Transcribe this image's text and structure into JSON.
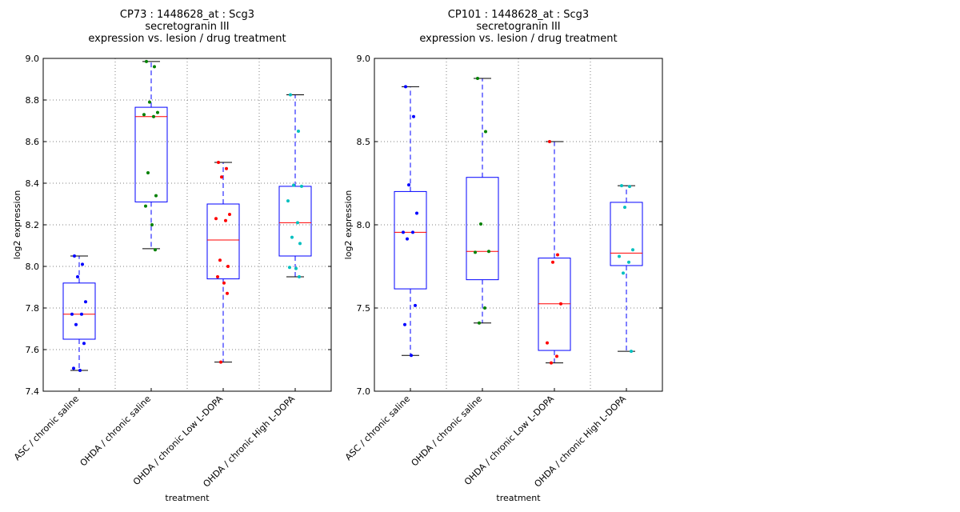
{
  "chart_data": [
    {
      "type": "box",
      "title_lines": [
        "CP73 : 1448628_at : Scg3",
        "secretogranin III",
        "expression vs. lesion / drug treatment"
      ],
      "xlabel": "treatment",
      "ylabel": "log2 expression",
      "ylim": [
        7.4,
        9.0
      ],
      "yticks": [
        "7.4",
        "7.6",
        "7.8",
        "8.0",
        "8.2",
        "8.4",
        "8.6",
        "8.8",
        "9.0"
      ],
      "ytick_values": [
        7.4,
        7.6,
        7.8,
        8.0,
        8.2,
        8.4,
        8.6,
        8.8,
        9.0
      ],
      "grid": true,
      "categories": [
        "ASC / chronic saline",
        "OHDA / chronic saline",
        "OHDA / chronic Low L-DOPA",
        "OHDA / chronic High L-DOPA"
      ],
      "groups": [
        {
          "color": "#0000ff",
          "q1": 7.65,
          "median": 7.77,
          "q3": 7.92,
          "whisker_low": 7.5,
          "whisker_high": 8.05,
          "points": [
            8.05,
            8.01,
            7.95,
            7.83,
            7.77,
            7.77,
            7.72,
            7.63,
            7.51,
            7.5
          ]
        },
        {
          "color": "#008000",
          "q1": 8.31,
          "median": 8.72,
          "q3": 8.765,
          "whisker_low": 8.085,
          "whisker_high": 8.985,
          "points": [
            8.985,
            8.96,
            8.79,
            8.74,
            8.73,
            8.72,
            8.45,
            8.34,
            8.29,
            8.2,
            8.08
          ]
        },
        {
          "color": "#ff0000",
          "q1": 7.94,
          "median": 8.127,
          "q3": 8.3,
          "whisker_low": 7.54,
          "whisker_high": 8.5,
          "points": [
            8.5,
            8.47,
            8.43,
            8.25,
            8.23,
            8.22,
            8.03,
            8.0,
            7.95,
            7.92,
            7.87,
            7.54
          ]
        },
        {
          "color": "#00bfbf",
          "q1": 8.05,
          "median": 8.21,
          "q3": 8.385,
          "whisker_low": 7.95,
          "whisker_high": 8.825,
          "points": [
            8.825,
            8.65,
            8.39,
            8.385,
            8.315,
            8.21,
            8.14,
            8.11,
            7.995,
            7.99,
            7.95
          ]
        }
      ]
    },
    {
      "type": "box",
      "title_lines": [
        "CP101 : 1448628_at : Scg3",
        "secretogranin III",
        "expression vs. lesion / drug treatment"
      ],
      "xlabel": "treatment",
      "ylabel": "log2 expression",
      "ylim": [
        7.0,
        9.0
      ],
      "yticks": [
        "7.0",
        "7.5",
        "8.0",
        "8.5",
        "9.0"
      ],
      "ytick_values": [
        7.0,
        7.5,
        8.0,
        8.5,
        9.0
      ],
      "grid": true,
      "categories": [
        "ASC / chronic saline",
        "OHDA / chronic saline",
        "OHDA / chronic Low L-DOPA",
        "OHDA / chronic High L-DOPA"
      ],
      "groups": [
        {
          "color": "#0000ff",
          "q1": 7.615,
          "median": 7.955,
          "q3": 8.2,
          "whisker_low": 7.215,
          "whisker_high": 8.83,
          "points": [
            8.83,
            8.65,
            8.24,
            8.07,
            7.955,
            7.955,
            7.915,
            7.515,
            7.4,
            7.215
          ]
        },
        {
          "color": "#008000",
          "q1": 7.67,
          "median": 7.84,
          "q3": 8.285,
          "whisker_low": 7.41,
          "whisker_high": 8.88,
          "points": [
            8.88,
            8.56,
            8.005,
            7.84,
            7.835,
            7.5,
            7.41
          ]
        },
        {
          "color": "#ff0000",
          "q1": 7.245,
          "median": 7.525,
          "q3": 7.8,
          "whisker_low": 7.17,
          "whisker_high": 8.5,
          "points": [
            8.5,
            7.82,
            7.775,
            7.525,
            7.29,
            7.21,
            7.17
          ]
        },
        {
          "color": "#00bfbf",
          "q1": 7.755,
          "median": 7.83,
          "q3": 8.135,
          "whisker_low": 7.24,
          "whisker_high": 8.235,
          "points": [
            8.235,
            8.23,
            8.105,
            7.85,
            7.81,
            7.775,
            7.71,
            7.24
          ]
        }
      ]
    }
  ],
  "style": {
    "box_color": "#0000ff",
    "median_color": "#ff0000",
    "cap_color": "#000000",
    "grid_color": "#808080"
  }
}
